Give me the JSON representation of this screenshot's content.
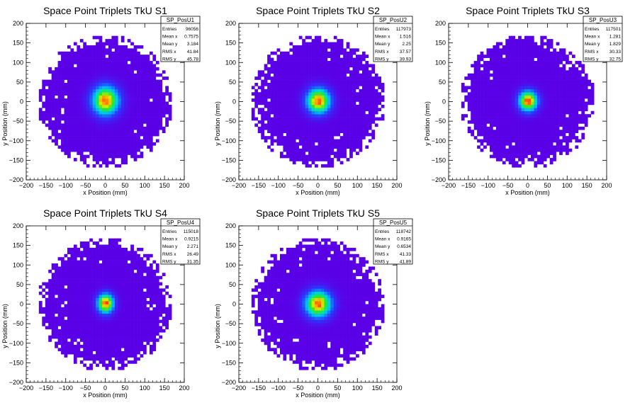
{
  "canvas": {
    "background": "#ffffff"
  },
  "chart_data": [
    {
      "type": "heatmap",
      "title": "Space Point Triplets TkU S1",
      "xlabel": "x Position (mm)",
      "ylabel": "y Position (mm)",
      "xlim": [
        -200,
        200
      ],
      "ylim": [
        -200,
        200
      ],
      "xticks": [
        "−200",
        "−150",
        "−100",
        "−50",
        "0",
        "50",
        "100",
        "150",
        "200"
      ],
      "yticks": [
        "200",
        "150",
        "100",
        "50",
        "0",
        "−50",
        "−100",
        "−150",
        "−200"
      ],
      "stats": {
        "name": "SP_PosU1",
        "rows": [
          [
            "Entries",
            "96056"
          ],
          [
            "Mean x",
            "0.7575"
          ],
          [
            "Mean y",
            "3.184"
          ],
          [
            "RMS x",
            "41.84"
          ],
          [
            "RMS y",
            "45.78"
          ]
        ]
      },
      "mean_x": 0.7575,
      "mean_y": 3.184,
      "rms_x": 41.84,
      "rms_y": 45.78
    },
    {
      "type": "heatmap",
      "title": "Space Point Triplets TkU S2",
      "xlabel": "x Position (mm)",
      "ylabel": "y Position (mm)",
      "xlim": [
        -200,
        200
      ],
      "ylim": [
        -200,
        200
      ],
      "xticks": [
        "−200",
        "−150",
        "−100",
        "−50",
        "0",
        "50",
        "100",
        "150",
        "200"
      ],
      "yticks": [
        "200",
        "150",
        "100",
        "50",
        "0",
        "−50",
        "−100",
        "−150",
        "−200"
      ],
      "stats": {
        "name": "SP_PosU2",
        "rows": [
          [
            "Entries",
            "117973"
          ],
          [
            "Mean x",
            "1.516"
          ],
          [
            "Mean y",
            "2.25"
          ],
          [
            "RMS x",
            "37.57"
          ],
          [
            "RMS y",
            "39.93"
          ]
        ]
      },
      "mean_x": 1.516,
      "mean_y": 2.25,
      "rms_x": 37.57,
      "rms_y": 39.93
    },
    {
      "type": "heatmap",
      "title": "Space Point Triplets TkU S3",
      "xlabel": "x Position (mm)",
      "ylabel": "y Position (mm)",
      "xlim": [
        -200,
        200
      ],
      "ylim": [
        -200,
        200
      ],
      "xticks": [
        "−200",
        "−150",
        "−100",
        "−50",
        "0",
        "50",
        "100",
        "150",
        "200"
      ],
      "yticks": [
        "200",
        "150",
        "100",
        "50",
        "0",
        "−50",
        "−100",
        "−150",
        "−200"
      ],
      "stats": {
        "name": "SP_PosU3",
        "rows": [
          [
            "Entries",
            "117501"
          ],
          [
            "Mean x",
            "1.281"
          ],
          [
            "Mean y",
            "1.829"
          ],
          [
            "RMS x",
            "30.33"
          ],
          [
            "RMS y",
            "32.75"
          ]
        ]
      },
      "mean_x": 1.281,
      "mean_y": 1.829,
      "rms_x": 30.33,
      "rms_y": 32.75
    },
    {
      "type": "heatmap",
      "title": "Space Point Triplets TkU S4",
      "xlabel": "x Position (mm)",
      "ylabel": "y Position (mm)",
      "xlim": [
        -200,
        200
      ],
      "ylim": [
        -200,
        200
      ],
      "xticks": [
        "−200",
        "−150",
        "−100",
        "−50",
        "0",
        "50",
        "100",
        "150",
        "200"
      ],
      "yticks": [
        "200",
        "150",
        "100",
        "50",
        "0",
        "−50",
        "−100",
        "−150",
        "−200"
      ],
      "stats": {
        "name": "SP_PosU4",
        "rows": [
          [
            "Entries",
            "115018"
          ],
          [
            "Mean x",
            "0.9215"
          ],
          [
            "Mean y",
            "2.271"
          ],
          [
            "RMS x",
            "26.49"
          ],
          [
            "RMS y",
            "31.35"
          ]
        ]
      },
      "mean_x": 0.9215,
      "mean_y": 2.271,
      "rms_x": 26.49,
      "rms_y": 31.35
    },
    {
      "type": "heatmap",
      "title": "Space Point Triplets TkU S5",
      "xlabel": "x Position (mm)",
      "ylabel": "y Position (mm)",
      "xlim": [
        -200,
        200
      ],
      "ylim": [
        -200,
        200
      ],
      "xticks": [
        "−200",
        "−150",
        "−100",
        "−50",
        "0",
        "50",
        "100",
        "150",
        "200"
      ],
      "yticks": [
        "200",
        "150",
        "100",
        "50",
        "0",
        "−50",
        "−100",
        "−150",
        "−200"
      ],
      "stats": {
        "name": "SP_PosU5",
        "rows": [
          [
            "Entries",
            "118742"
          ],
          [
            "Mean x",
            "0.9165"
          ],
          [
            "Mean y",
            "0.6534"
          ],
          [
            "RMS x",
            "41.33"
          ],
          [
            "RMS y",
            "41.89"
          ]
        ]
      },
      "mean_x": 0.9165,
      "mean_y": 0.6534,
      "rms_x": 41.33,
      "rms_y": 41.89
    }
  ]
}
